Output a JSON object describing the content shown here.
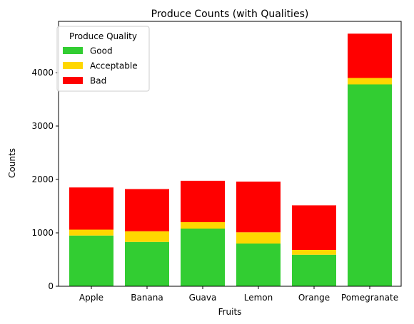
{
  "chart_data": {
    "type": "bar",
    "stacked": true,
    "title": "Produce Counts (with Qualities)",
    "xlabel": "Fruits",
    "ylabel": "Counts",
    "categories": [
      "Apple",
      "Banana",
      "Guava",
      "Lemon",
      "Orange",
      "Pomegranate"
    ],
    "ylim": [
      0,
      4960
    ],
    "yticks": [
      0,
      1000,
      2000,
      3000,
      4000
    ],
    "grid": false,
    "legend": {
      "title": "Produce Quality",
      "placement": "top-left"
    },
    "series": [
      {
        "name": "Good",
        "color": "#32cd32",
        "values": [
          950,
          830,
          1080,
          800,
          590,
          3780
        ]
      },
      {
        "name": "Acceptable",
        "color": "#ffd700",
        "values": [
          110,
          200,
          120,
          210,
          90,
          120
        ]
      },
      {
        "name": "Bad",
        "color": "#ff0000",
        "values": [
          790,
          790,
          775,
          950,
          835,
          830
        ]
      }
    ]
  }
}
